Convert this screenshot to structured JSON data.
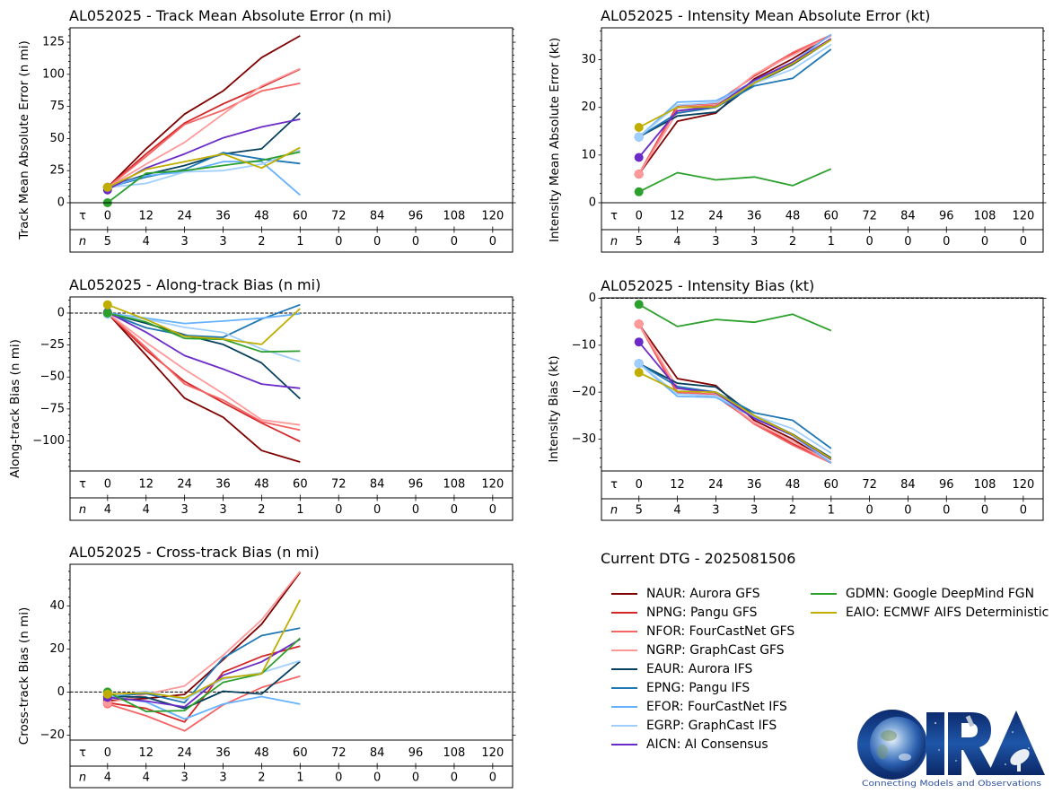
{
  "table": {
    "tau_symbol": "τ",
    "n_symbol": "n"
  },
  "legend": {
    "title": "Current DTG - 2025081506",
    "placement": "bottom-right panel"
  },
  "models": [
    {
      "code": "NAUR",
      "label": "NAUR: Aurora GFS",
      "color": "#800000"
    },
    {
      "code": "NPNG",
      "label": "NPNG: Pangu GFS",
      "color": "#d62728"
    },
    {
      "code": "NFOR",
      "label": "NFOR: FourCastNet GFS",
      "color": "#f56464"
    },
    {
      "code": "NGRP",
      "label": "NGRP: GraphCast GFS",
      "color": "#ff9999"
    },
    {
      "code": "EAUR",
      "label": "EAUR: Aurora IFS",
      "color": "#06405e"
    },
    {
      "code": "EPNG",
      "label": "EPNG: Pangu IFS",
      "color": "#1f77b4"
    },
    {
      "code": "EFOR",
      "label": "EFOR: FourCastNet IFS",
      "color": "#66b2ff"
    },
    {
      "code": "EGRP",
      "label": "EGRP: GraphCast IFS",
      "color": "#a0cfff"
    },
    {
      "code": "AICN",
      "label": "AICN: AI Consensus",
      "color": "#6b2bc8"
    },
    {
      "code": "GDMN",
      "label": "GDMN: Google DeepMind FGN",
      "color": "#2ca02c"
    },
    {
      "code": "EAIO",
      "label": "EAIO: ECMWF AIFS Deterministic",
      "color": "#bfae00"
    }
  ],
  "logo": {
    "name": "CIRA",
    "tagline": "Connecting Models and Observations"
  },
  "chart_data": [
    {
      "id": "track-mae",
      "type": "line",
      "title": "AL052025 - Track Mean Absolute Error (n mi)",
      "xlabel": "",
      "ylabel": "Track Mean Absolute Error (n mi)",
      "x": [
        0,
        12,
        24,
        36,
        48,
        60
      ],
      "xlim": [
        -11.7,
        126.2
      ],
      "x_ticks": [
        0,
        12,
        24,
        36,
        48,
        60,
        72,
        84,
        96,
        108,
        120
      ],
      "x_tick_labels": [
        "0",
        "12",
        "24",
        "36",
        "48",
        "60",
        "72",
        "84",
        "96",
        "108",
        "120"
      ],
      "n_counts": [
        5,
        4,
        3,
        3,
        2,
        1,
        0,
        0,
        0,
        0,
        0
      ],
      "ylim": [
        0,
        136.2
      ],
      "y_ticks": [
        0,
        25,
        50,
        75,
        100,
        125
      ],
      "y_tick_labels": [
        "0",
        "25",
        "50",
        "75",
        "100",
        "125"
      ],
      "y_minor_step": 5,
      "zero_line": false,
      "grid": false,
      "marker_at_x": 0,
      "series": [
        {
          "name": "NAUR",
          "values": [
            12,
            42,
            69,
            87,
            113,
            130
          ]
        },
        {
          "name": "NPNG",
          "values": [
            12,
            38,
            62,
            77,
            90,
            104
          ]
        },
        {
          "name": "NFOR",
          "values": [
            12,
            36,
            61,
            72,
            87,
            93
          ]
        },
        {
          "name": "NGRP",
          "values": [
            12,
            30,
            47,
            69,
            91,
            104.5
          ]
        },
        {
          "name": "EAUR",
          "values": [
            12,
            22,
            29,
            38,
            42,
            70
          ]
        },
        {
          "name": "EPNG",
          "values": [
            12,
            20,
            26,
            39,
            34,
            30.5
          ]
        },
        {
          "name": "EFOR",
          "values": [
            12,
            21,
            24,
            32,
            32,
            6
          ]
        },
        {
          "name": "EGRP",
          "values": [
            12,
            15,
            24,
            25,
            30,
            41
          ]
        },
        {
          "name": "AICN",
          "values": [
            10,
            27,
            38,
            50.5,
            59,
            65
          ]
        },
        {
          "name": "GDMN",
          "values": [
            0,
            23,
            25,
            29,
            33,
            39.5
          ]
        },
        {
          "name": "EAIO",
          "values": [
            12,
            26,
            32,
            38,
            27,
            43
          ]
        }
      ]
    },
    {
      "id": "intensity-mae",
      "type": "line",
      "title": "AL052025 - Intensity Mean Absolute Error (kt)",
      "xlabel": "",
      "ylabel": "Intensity Mean Absolute Error (kt)",
      "x": [
        0,
        12,
        24,
        36,
        48,
        60
      ],
      "xlim": [
        -11.7,
        126.2
      ],
      "x_ticks": [
        0,
        12,
        24,
        36,
        48,
        60,
        72,
        84,
        96,
        108,
        120
      ],
      "x_tick_labels": [
        "0",
        "12",
        "24",
        "36",
        "48",
        "60",
        "72",
        "84",
        "96",
        "108",
        "120"
      ],
      "n_counts": [
        5,
        4,
        3,
        3,
        2,
        1,
        0,
        0,
        0,
        0,
        0
      ],
      "ylim": [
        0,
        36.7
      ],
      "y_ticks": [
        0,
        10,
        20,
        30
      ],
      "y_tick_labels": [
        "0",
        "10",
        "20",
        "30"
      ],
      "y_minor_step": 2,
      "zero_line": false,
      "grid": false,
      "marker_at_x": 0,
      "series": [
        {
          "name": "NAUR",
          "values": [
            6,
            17.1,
            18.8,
            26,
            30.2,
            35.2
          ]
        },
        {
          "name": "NPNG",
          "values": [
            6,
            20.4,
            20.9,
            26.6,
            31.2,
            35.2
          ]
        },
        {
          "name": "NFOR",
          "values": [
            6,
            20,
            20.5,
            26.8,
            31.5,
            35.2
          ]
        },
        {
          "name": "NGRP",
          "values": [
            6,
            19,
            20.3,
            26.9,
            31,
            35
          ]
        },
        {
          "name": "EAUR",
          "values": [
            13.8,
            18.2,
            19,
            25,
            29,
            34.2
          ]
        },
        {
          "name": "EPNG",
          "values": [
            13.8,
            18.8,
            20,
            24.5,
            26.1,
            32.2
          ]
        },
        {
          "name": "EFOR",
          "values": [
            13.8,
            21.1,
            21.4,
            25.4,
            29.5,
            35.3
          ]
        },
        {
          "name": "EGRP",
          "values": [
            13.8,
            20.5,
            21,
            25,
            28,
            33.2
          ]
        },
        {
          "name": "AICN",
          "values": [
            9.5,
            19.3,
            20.2,
            25.7,
            29.5,
            34.4
          ]
        },
        {
          "name": "GDMN",
          "values": [
            2.3,
            6.3,
            4.8,
            5.4,
            3.6,
            7.1
          ]
        },
        {
          "name": "EAIO",
          "values": [
            15.8,
            20,
            20.1,
            25.1,
            29.2,
            34.2
          ]
        }
      ]
    },
    {
      "id": "along-track-bias",
      "type": "line",
      "title": "AL052025 - Along-track Bias (n mi)",
      "xlabel": "",
      "ylabel": "Along-track Bias (n mi)",
      "x": [
        0,
        12,
        24,
        36,
        48,
        60
      ],
      "xlim": [
        -11.7,
        126.2
      ],
      "x_ticks": [
        0,
        12,
        24,
        36,
        48,
        60,
        72,
        84,
        96,
        108,
        120
      ],
      "x_tick_labels": [
        "0",
        "12",
        "24",
        "36",
        "48",
        "60",
        "72",
        "84",
        "96",
        "108",
        "120"
      ],
      "n_counts": [
        4,
        4,
        3,
        3,
        2,
        1,
        0,
        0,
        0,
        0,
        0
      ],
      "ylim": [
        -123.5,
        12.6
      ],
      "y_ticks": [
        -100,
        -75,
        -50,
        -25,
        0
      ],
      "y_tick_labels": [
        "−100",
        "−75",
        "−50",
        "−25",
        "0"
      ],
      "y_minor_step": 5,
      "zero_line": true,
      "grid": false,
      "marker_at_x": 0,
      "series": [
        {
          "name": "NAUR",
          "values": [
            0,
            -33,
            -66.5,
            -81.5,
            -107.5,
            -116.5
          ]
        },
        {
          "name": "NPNG",
          "values": [
            0,
            -29,
            -53.5,
            -70,
            -86,
            -100.5
          ]
        },
        {
          "name": "NFOR",
          "values": [
            0,
            -27,
            -55.5,
            -68,
            -85,
            -91.5
          ]
        },
        {
          "name": "NGRP",
          "values": [
            0,
            -23,
            -44,
            -63,
            -83.5,
            -87.5
          ]
        },
        {
          "name": "EAUR",
          "values": [
            0,
            -8,
            -17,
            -24.5,
            -39,
            -67
          ]
        },
        {
          "name": "EPNG",
          "values": [
            0,
            -11.5,
            -17.5,
            -19,
            -4.7,
            6.5
          ]
        },
        {
          "name": "EFOR",
          "values": [
            0,
            -4,
            -8.2,
            -6.3,
            -4,
            -0.5
          ]
        },
        {
          "name": "EGRP",
          "values": [
            -1,
            -4.7,
            -11.2,
            -15.2,
            -28,
            -37.8
          ]
        },
        {
          "name": "AICN",
          "values": [
            0.5,
            -15,
            -33.3,
            -43.8,
            -55.5,
            -58.8
          ]
        },
        {
          "name": "GDMN",
          "values": [
            0,
            -7,
            -19.8,
            -20.5,
            -30.3,
            -29.8
          ]
        },
        {
          "name": "EAIO",
          "values": [
            6.5,
            -5,
            -18.2,
            -20.3,
            -24.5,
            3.5
          ]
        }
      ]
    },
    {
      "id": "intensity-bias",
      "type": "line",
      "title": "AL052025 - Intensity Bias (kt)",
      "xlabel": "",
      "ylabel": "Intensity Bias (kt)",
      "x": [
        0,
        12,
        24,
        36,
        48,
        60
      ],
      "xlim": [
        -11.7,
        126.2
      ],
      "x_ticks": [
        0,
        12,
        24,
        36,
        48,
        60,
        72,
        84,
        96,
        108,
        120
      ],
      "x_tick_labels": [
        "0",
        "12",
        "24",
        "36",
        "48",
        "60",
        "72",
        "84",
        "96",
        "108",
        "120"
      ],
      "n_counts": [
        5,
        4,
        3,
        3,
        2,
        1,
        0,
        0,
        0,
        0,
        0
      ],
      "ylim": [
        -36.8,
        0.1
      ],
      "y_ticks": [
        -30,
        -20,
        -10,
        0
      ],
      "y_tick_labels": [
        "−30",
        "−20",
        "−10",
        "0"
      ],
      "y_minor_step": 2,
      "zero_line": true,
      "grid": false,
      "marker_at_x": 0,
      "series": [
        {
          "name": "NAUR",
          "values": [
            -5.5,
            -17.1,
            -18.6,
            -26,
            -30,
            -35.1
          ]
        },
        {
          "name": "NPNG",
          "values": [
            -5.5,
            -20.3,
            -20.9,
            -26.5,
            -31,
            -35
          ]
        },
        {
          "name": "NFOR",
          "values": [
            -5.5,
            -20,
            -20.5,
            -26.8,
            -31.3,
            -35.1
          ]
        },
        {
          "name": "NGRP",
          "values": [
            -5.5,
            -19,
            -20.3,
            -26.5,
            -30.5,
            -35
          ]
        },
        {
          "name": "EAUR",
          "values": [
            -13.9,
            -18.1,
            -18.9,
            -25,
            -29,
            -34
          ]
        },
        {
          "name": "EPNG",
          "values": [
            -13.9,
            -18.8,
            -20,
            -24.4,
            -26,
            -32
          ]
        },
        {
          "name": "EFOR",
          "values": [
            -13.9,
            -20.9,
            -21.1,
            -25.4,
            -29.3,
            -35.1
          ]
        },
        {
          "name": "EGRP",
          "values": [
            -13.9,
            -20.4,
            -20.8,
            -25,
            -27.8,
            -33
          ]
        },
        {
          "name": "AICN",
          "values": [
            -9.3,
            -19.2,
            -20.1,
            -25.6,
            -29.2,
            -34.4
          ]
        },
        {
          "name": "GDMN",
          "values": [
            -1.3,
            -6,
            -4.5,
            -5.1,
            -3.4,
            -6.9
          ]
        },
        {
          "name": "EAIO",
          "values": [
            -15.8,
            -19.8,
            -20,
            -25,
            -29.1,
            -34.2
          ]
        }
      ]
    },
    {
      "id": "cross-track-bias",
      "type": "line",
      "title": "AL052025 - Cross-track Bias (n mi)",
      "xlabel": "",
      "ylabel": "Cross-track Bias (n mi)",
      "x": [
        0,
        12,
        24,
        36,
        48,
        60
      ],
      "xlim": [
        -11.7,
        126.2
      ],
      "x_ticks": [
        0,
        12,
        24,
        36,
        48,
        60,
        72,
        84,
        96,
        108,
        120
      ],
      "x_tick_labels": [
        "0",
        "12",
        "24",
        "36",
        "48",
        "60",
        "72",
        "84",
        "96",
        "108",
        "120"
      ],
      "n_counts": [
        4,
        4,
        3,
        3,
        2,
        1,
        0,
        0,
        0,
        0,
        0
      ],
      "ylim": [
        -22.3,
        59.3
      ],
      "y_ticks": [
        -20,
        0,
        20,
        40
      ],
      "y_tick_labels": [
        "−20",
        "0",
        "20",
        "40"
      ],
      "y_minor_step": 4,
      "zero_line": true,
      "grid": false,
      "marker_at_x": 0,
      "series": [
        {
          "name": "NAUR",
          "values": [
            -4,
            -3,
            -1.1,
            15,
            31.5,
            55.5
          ]
        },
        {
          "name": "NPNG",
          "values": [
            -5,
            -7.6,
            -13.9,
            9.2,
            16.5,
            21.3
          ]
        },
        {
          "name": "NFOR",
          "values": [
            -5.5,
            -11,
            -18,
            -6,
            2.1,
            7.4
          ]
        },
        {
          "name": "NGRP",
          "values": [
            -5,
            -1,
            2.8,
            17,
            33.5,
            56
          ]
        },
        {
          "name": "EAUR",
          "values": [
            -2,
            -2.4,
            -7.6,
            0.4,
            -0.9,
            14.2
          ]
        },
        {
          "name": "EPNG",
          "values": [
            -2,
            -0.7,
            -4.9,
            15.8,
            26.2,
            29.7
          ]
        },
        {
          "name": "EFOR",
          "values": [
            -2,
            -4.6,
            -12.5,
            -5.6,
            -2.1,
            -5.6
          ]
        },
        {
          "name": "EGRP",
          "values": [
            -2,
            0.3,
            -3.5,
            6,
            9,
            14.5
          ]
        },
        {
          "name": "AICN",
          "values": [
            -2.5,
            -4.2,
            -6.9,
            7.8,
            14,
            24.5
          ]
        },
        {
          "name": "GDMN",
          "values": [
            0,
            -9,
            -8.6,
            4.5,
            8.5,
            25
          ]
        },
        {
          "name": "EAIO",
          "values": [
            -1,
            -0.4,
            -2.8,
            6.5,
            8.5,
            42.8
          ]
        }
      ]
    }
  ]
}
